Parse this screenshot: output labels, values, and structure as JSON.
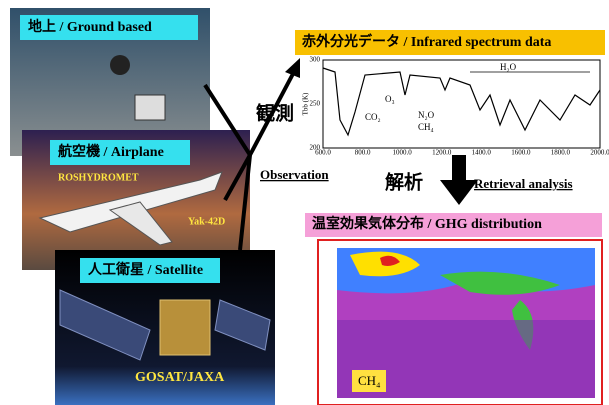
{
  "panels": [
    {
      "label": "地上 / Ground based"
    },
    {
      "label": "航空機 / Airplane",
      "texts": [
        "ROSHYDROMET",
        "Yak-42D"
      ]
    },
    {
      "label": "人工衛星 / Satellite",
      "credit": "GOSAT/JAXA"
    }
  ],
  "observation": {
    "kanji": "観測",
    "label": "Observation"
  },
  "spectrum": {
    "title": "赤外分光データ / Infrared spectrum data",
    "y_axis": "Tbb (K)",
    "yticks": [
      "300",
      "250",
      "200"
    ],
    "xticks": [
      "600.0",
      "800.0",
      "1000.0",
      "1200.0",
      "1400.0",
      "1600.0",
      "1800.0",
      "2000.0"
    ],
    "annotations": [
      "CO₂",
      "O₃",
      "N₂O",
      "CH₄",
      "H₂O"
    ]
  },
  "retrieval": {
    "kanji": "解析",
    "label": "Retrieval analysis"
  },
  "distribution": {
    "title": "温室効果気体分布 / GHG distribution",
    "label": "CH₄"
  }
}
